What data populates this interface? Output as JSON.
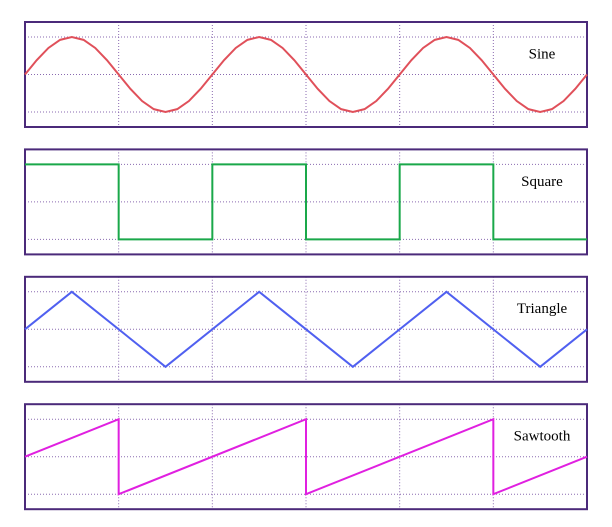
{
  "chart_data": [
    {
      "type": "line",
      "title": "Sine",
      "color": "#e0505a",
      "x": [
        0,
        0.125,
        0.25,
        0.375,
        0.5,
        0.625,
        0.75,
        0.875,
        1,
        1.125,
        1.25,
        1.375,
        1.5,
        1.625,
        1.75,
        1.875,
        2,
        2.125,
        2.25,
        2.375,
        2.5,
        2.625,
        2.75,
        2.875,
        3,
        3.125,
        3.25,
        3.375,
        3.5,
        3.625,
        3.75,
        3.875,
        4,
        4.125,
        4.25,
        4.375,
        4.5,
        4.625,
        4.75,
        4.875,
        5,
        5.125,
        5.25,
        5.375,
        5.5,
        5.625,
        5.75,
        5.875,
        6
      ],
      "values": [
        0,
        0.383,
        0.707,
        0.924,
        1,
        0.924,
        0.707,
        0.383,
        0,
        -0.383,
        -0.707,
        -0.924,
        -1,
        -0.924,
        -0.707,
        -0.383,
        0,
        0.383,
        0.707,
        0.924,
        1,
        0.924,
        0.707,
        0.383,
        0,
        -0.383,
        -0.707,
        -0.924,
        -1,
        -0.924,
        -0.707,
        -0.383,
        0,
        0.383,
        0.707,
        0.924,
        1,
        0.924,
        0.707,
        0.383,
        0,
        -0.383,
        -0.707,
        -0.924,
        -1,
        -0.924,
        -0.707,
        -0.383,
        0
      ],
      "xlim": [
        0,
        6
      ],
      "ylim": [
        -1.4,
        1.4
      ],
      "xticks": [
        1,
        2,
        3,
        4,
        5
      ],
      "yticks": [
        -1,
        0,
        1
      ],
      "grid": true
    },
    {
      "type": "line",
      "title": "Square",
      "color": "#1aa84a",
      "x": [
        0,
        1,
        1,
        2,
        2,
        3,
        3,
        4,
        4,
        5,
        5,
        6
      ],
      "values": [
        1,
        1,
        -1,
        -1,
        1,
        1,
        -1,
        -1,
        1,
        1,
        -1,
        -1
      ],
      "xlim": [
        0,
        6
      ],
      "ylim": [
        -1.4,
        1.4
      ],
      "xticks": [
        1,
        2,
        3,
        4,
        5
      ],
      "yticks": [
        -1,
        0,
        1
      ],
      "grid": true
    },
    {
      "type": "line",
      "title": "Triangle",
      "color": "#5060f0",
      "x": [
        0,
        0.5,
        1.5,
        2.5,
        3.5,
        4.5,
        5.5,
        6
      ],
      "values": [
        0,
        1,
        -1,
        1,
        -1,
        1,
        -1,
        0
      ],
      "xlim": [
        0,
        6
      ],
      "ylim": [
        -1.4,
        1.4
      ],
      "xticks": [
        1,
        2,
        3,
        4,
        5
      ],
      "yticks": [
        -1,
        0,
        1
      ],
      "grid": true
    },
    {
      "type": "line",
      "title": "Sawtooth",
      "color": "#e020e0",
      "x": [
        0,
        1,
        1,
        3,
        3,
        5,
        5,
        6
      ],
      "values": [
        0,
        1,
        -1,
        1,
        -1,
        1,
        -1,
        0
      ],
      "xlim": [
        0,
        6
      ],
      "ylim": [
        -1.4,
        1.4
      ],
      "xticks": [
        1,
        2,
        3,
        4,
        5
      ],
      "yticks": [
        -1,
        0,
        1
      ],
      "grid": true
    }
  ]
}
